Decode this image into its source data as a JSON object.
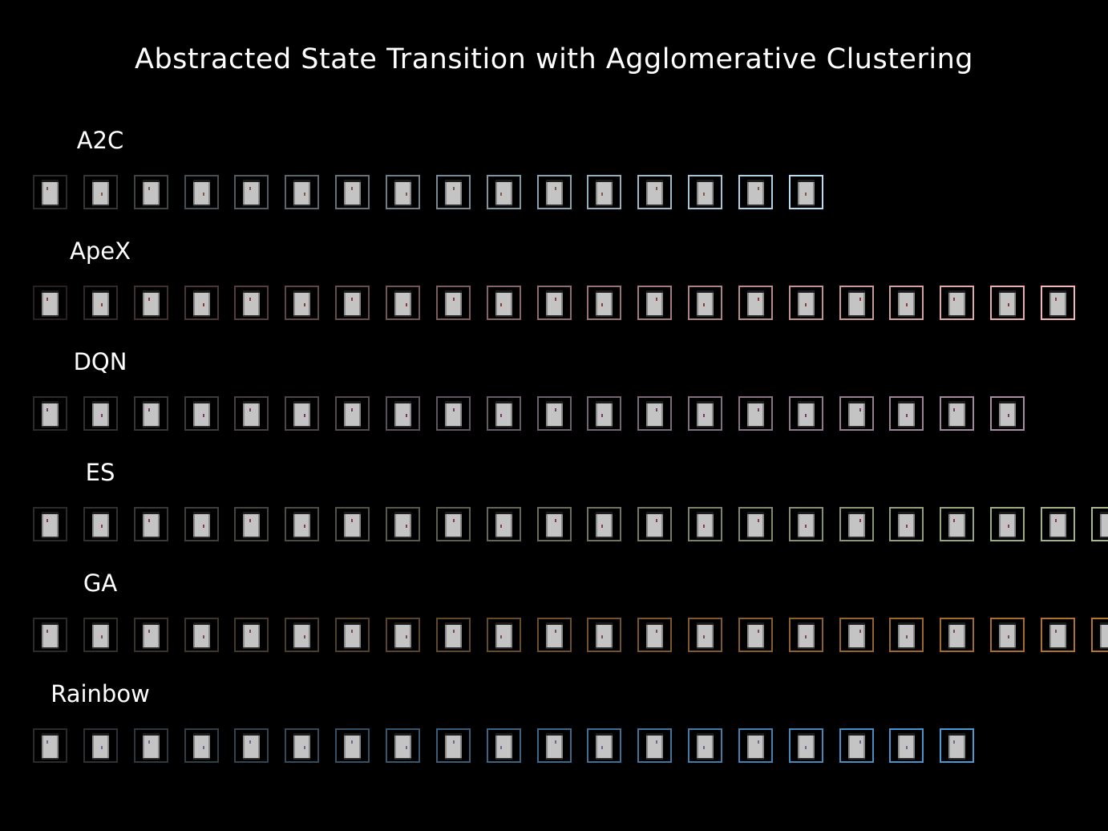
{
  "title": "Abstracted State Transition with Agglomerative Clustering",
  "rows": [
    {
      "label": "A2C",
      "frame_count": 16,
      "border_start": "#2b2b2b",
      "border_end": "#b9dcf2",
      "sprite_color": "#7a5a4a"
    },
    {
      "label": "ApeX",
      "frame_count": 21,
      "border_start": "#2b2020",
      "border_end": "#f0b7b7",
      "sprite_color": "#8a3a3a"
    },
    {
      "label": "DQN",
      "frame_count": 20,
      "border_start": "#2b2b2b",
      "border_end": "#a98da5",
      "sprite_color": "#7a3a6a"
    },
    {
      "label": "ES",
      "frame_count": 22,
      "border_start": "#2b2b2b",
      "border_end": "#a9b98a",
      "sprite_color": "#8a3a4a"
    },
    {
      "label": "GA",
      "frame_count": 22,
      "border_start": "#2b2b2b",
      "border_end": "#b5762a",
      "sprite_color": "#7a4a6a"
    },
    {
      "label": "Rainbow",
      "frame_count": 19,
      "border_start": "#2b2b2b",
      "border_end": "#4a9ad8",
      "sprite_color": "#6a6a8a"
    }
  ]
}
